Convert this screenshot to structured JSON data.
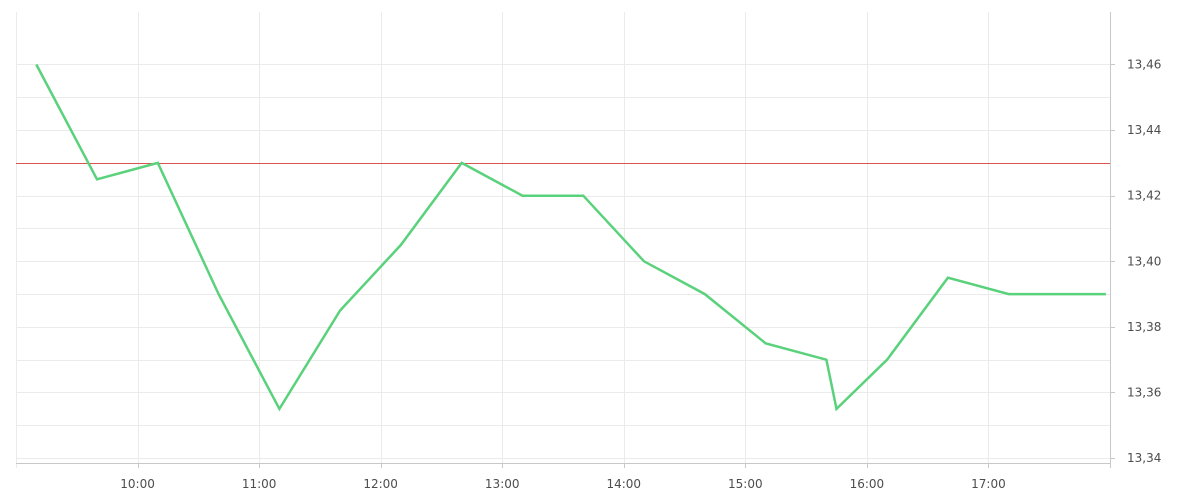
{
  "chart_data": {
    "type": "line",
    "title": "",
    "xlabel": "",
    "ylabel": "",
    "x_ticks": [
      "10:00",
      "11:00",
      "12:00",
      "13:00",
      "14:00",
      "15:00",
      "16:00",
      "17:00"
    ],
    "y_ticks": [
      "13,34",
      "13,36",
      "13,38",
      "13,40",
      "13,42",
      "13,44",
      "13,46"
    ],
    "xlim": [
      "09:00",
      "18:00"
    ],
    "ylim": [
      13.3385,
      13.476
    ],
    "grid": true,
    "y_axis_side": "right",
    "series": [
      {
        "color": "#5ad17b",
        "points": [
          {
            "x": "09:10",
            "y": 13.46
          },
          {
            "x": "09:40",
            "y": 13.425
          },
          {
            "x": "10:10",
            "y": 13.43
          },
          {
            "x": "10:40",
            "y": 13.39
          },
          {
            "x": "11:10",
            "y": 13.355
          },
          {
            "x": "11:40",
            "y": 13.385
          },
          {
            "x": "12:10",
            "y": 13.405
          },
          {
            "x": "12:40",
            "y": 13.43
          },
          {
            "x": "13:10",
            "y": 13.42
          },
          {
            "x": "13:40",
            "y": 13.42
          },
          {
            "x": "14:10",
            "y": 13.4
          },
          {
            "x": "14:40",
            "y": 13.39
          },
          {
            "x": "15:10",
            "y": 13.375
          },
          {
            "x": "15:40",
            "y": 13.37
          },
          {
            "x": "15:45",
            "y": 13.355
          },
          {
            "x": "16:10",
            "y": 13.37
          },
          {
            "x": "16:40",
            "y": 13.395
          },
          {
            "x": "17:10",
            "y": 13.39
          },
          {
            "x": "17:40",
            "y": 13.39
          },
          {
            "x": "17:58",
            "y": 13.39
          }
        ]
      }
    ],
    "reference_line": {
      "y": 13.43,
      "color": "#d9534f"
    }
  }
}
